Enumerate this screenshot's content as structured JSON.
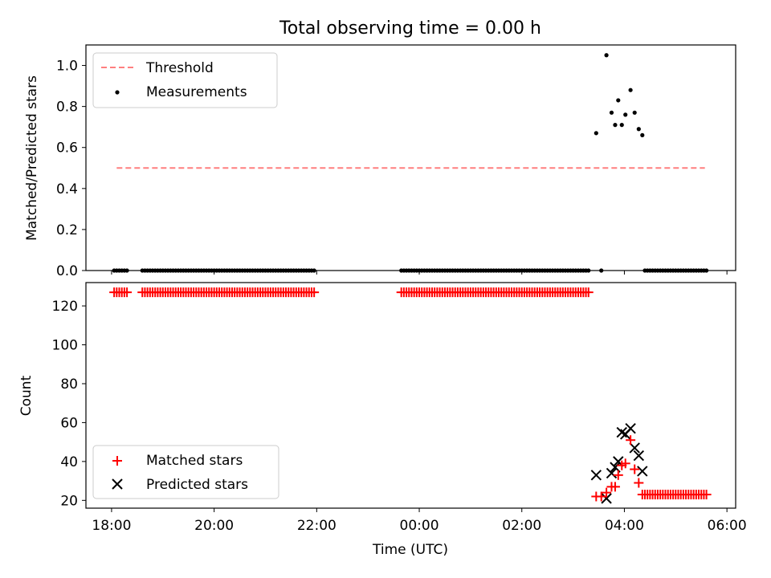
{
  "chart_data": {
    "title": "Total observing time = 0.00 h",
    "x_tick_labels": [
      "18:00",
      "20:00",
      "22:00",
      "00:00",
      "02:00",
      "04:00",
      "06:00"
    ],
    "xlabel": "Time (UTC)",
    "xlim_hours_from_1800": [
      -0.5,
      12.17
    ],
    "panels": [
      {
        "type": "scatter",
        "ylabel": "Matched/Predicted stars",
        "ylim": [
          0,
          1.1
        ],
        "y_ticks": [
          0.0,
          0.2,
          0.4,
          0.6,
          0.8,
          1.0
        ],
        "y_tick_labels": [
          "0.0",
          "0.2",
          "0.4",
          "0.6",
          "0.8",
          "1.0"
        ],
        "legend_position": "upper-left",
        "threshold": {
          "name": "Threshold",
          "value": 0.5,
          "x_range": [
            0.1,
            11.57
          ],
          "color": "#ff7f7f"
        },
        "measurements": {
          "name": "Measurements",
          "color": "#000000",
          "zero_segments": [
            [
              0.05,
              0.3
            ],
            [
              0.6,
              3.95
            ],
            [
              5.65,
              9.3
            ],
            [
              10.4,
              11.6
            ]
          ],
          "points": [
            [
              9.45,
              0.67
            ],
            [
              9.65,
              1.05
            ],
            [
              9.75,
              0.77
            ],
            [
              9.82,
              0.71
            ],
            [
              9.88,
              0.83
            ],
            [
              9.95,
              0.71
            ],
            [
              10.02,
              0.76
            ],
            [
              10.12,
              0.88
            ],
            [
              10.2,
              0.77
            ],
            [
              10.28,
              0.69
            ],
            [
              10.35,
              0.66
            ],
            [
              9.55,
              0.0
            ]
          ]
        }
      },
      {
        "type": "scatter",
        "ylabel": "Count",
        "ylim": [
          16,
          132
        ],
        "y_ticks": [
          20,
          40,
          60,
          80,
          100,
          120
        ],
        "y_tick_labels": [
          "20",
          "40",
          "60",
          "80",
          "100",
          "120"
        ],
        "legend_position": "lower-left",
        "matched": {
          "name": "Matched stars",
          "color": "#ff0000",
          "plateau_value": 127,
          "plateau_segments": [
            [
              0.05,
              0.3
            ],
            [
              0.6,
              3.95
            ],
            [
              5.65,
              9.3
            ]
          ],
          "tail_value": 23,
          "tail_segment": [
            10.35,
            11.6
          ],
          "points": [
            [
              9.45,
              22
            ],
            [
              9.55,
              22
            ],
            [
              9.65,
              24
            ],
            [
              9.75,
              27
            ],
            [
              9.82,
              27
            ],
            [
              9.88,
              33
            ],
            [
              9.95,
              38
            ],
            [
              10.02,
              39
            ],
            [
              10.12,
              51
            ],
            [
              10.2,
              36
            ],
            [
              10.28,
              29
            ]
          ]
        },
        "predicted": {
          "name": "Predicted stars",
          "color": "#000000",
          "points": [
            [
              9.45,
              33
            ],
            [
              9.65,
              21
            ],
            [
              9.75,
              34
            ],
            [
              9.82,
              37
            ],
            [
              9.88,
              40
            ],
            [
              9.95,
              55
            ],
            [
              10.02,
              54
            ],
            [
              10.12,
              57
            ],
            [
              10.2,
              47
            ],
            [
              10.28,
              43
            ],
            [
              10.35,
              35
            ]
          ]
        }
      }
    ]
  }
}
